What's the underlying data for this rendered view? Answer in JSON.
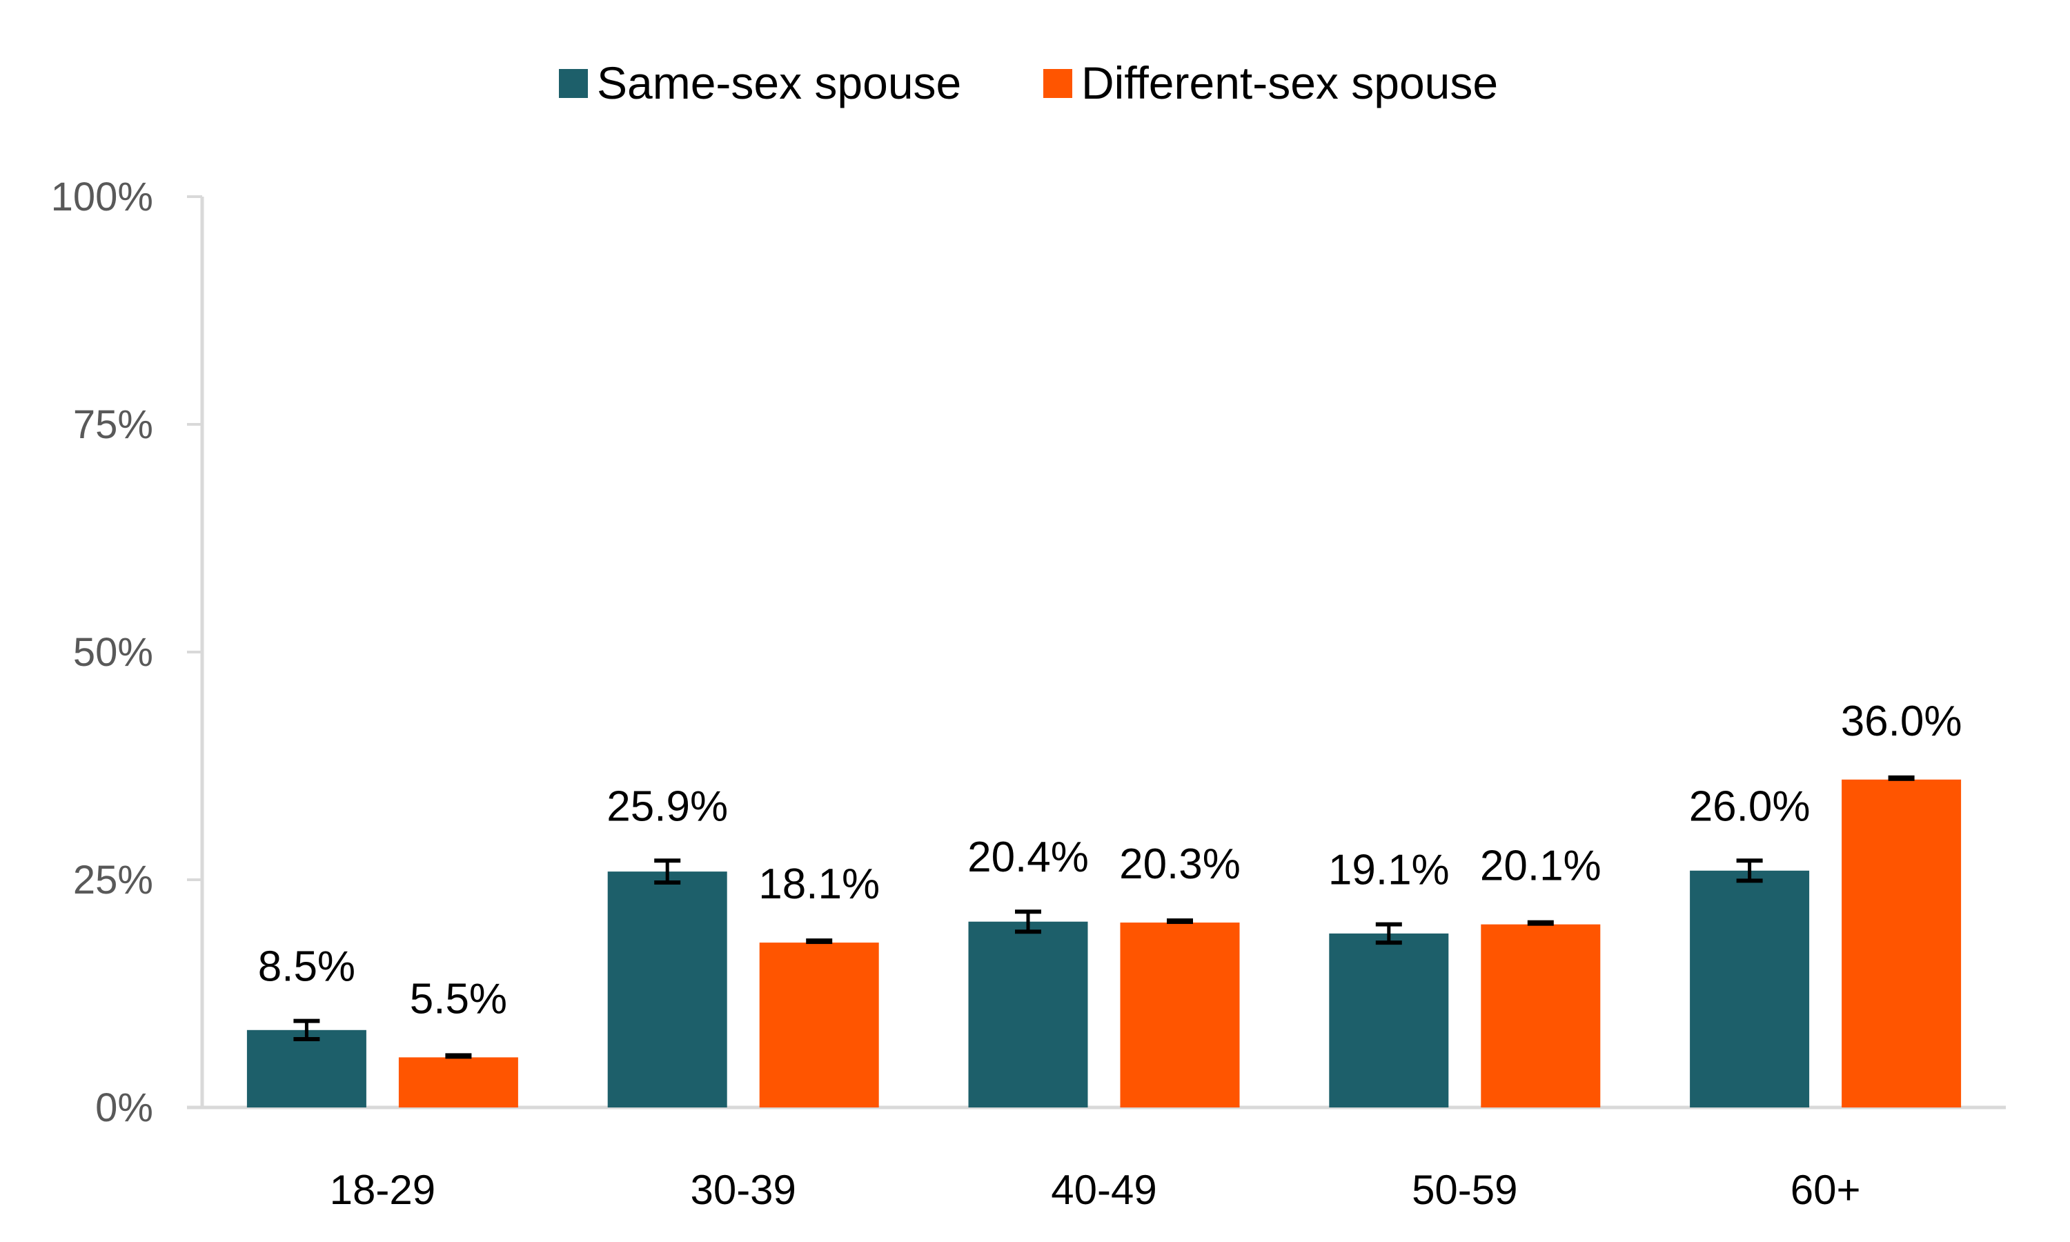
{
  "chart_data": {
    "type": "bar",
    "title": "",
    "xlabel": "",
    "ylabel": "",
    "categories": [
      "18-29",
      "30-39",
      "40-49",
      "50-59",
      "60+"
    ],
    "series": [
      {
        "name": "Same-sex spouse",
        "color": "#1D5F6A",
        "values": [
          8.5,
          25.9,
          20.4,
          19.1,
          26.0
        ],
        "labels": [
          "8.5%",
          "25.9%",
          "20.4%",
          "19.1%",
          "26.0%"
        ],
        "error": [
          1.0,
          1.2,
          1.1,
          1.0,
          1.1
        ]
      },
      {
        "name": "Different-sex spouse",
        "color": "#FF5500",
        "values": [
          5.5,
          18.1,
          20.3,
          20.1,
          36.0
        ],
        "labels": [
          "5.5%",
          "18.1%",
          "20.3%",
          "20.1%",
          "36.0%"
        ],
        "error": [
          0.15,
          0.15,
          0.15,
          0.15,
          0.15
        ]
      }
    ],
    "ylim": [
      0,
      100
    ],
    "yticks": [
      0,
      25,
      50,
      75,
      100
    ],
    "ytick_labels": [
      "0%",
      "25%",
      "50%",
      "75%",
      "100%"
    ],
    "grid": false,
    "legend": "top-center",
    "error_bars": true
  }
}
